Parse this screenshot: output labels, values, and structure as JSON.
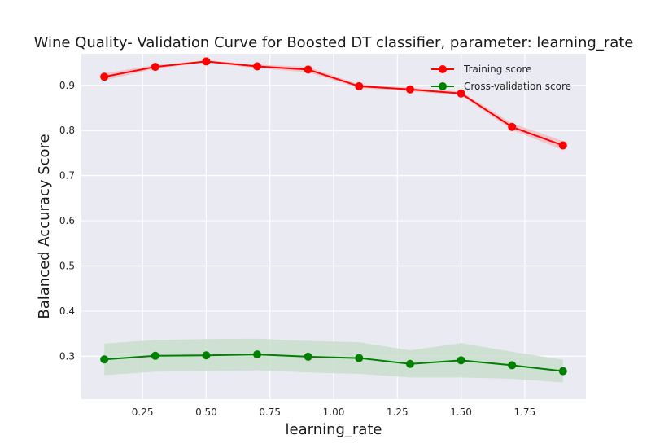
{
  "chart_data": {
    "type": "line",
    "title": "Wine Quality- Validation Curve for Boosted DT classifier, parameter: learning_rate",
    "xlabel": "learning_rate",
    "ylabel": "Balanced Accuracy Score",
    "x": [
      0.1,
      0.3,
      0.5,
      0.7,
      0.9,
      1.1,
      1.3,
      1.5,
      1.7,
      1.9
    ],
    "xlim": [
      0.01,
      1.99
    ],
    "ylim": [
      0.205,
      0.97
    ],
    "xticks": [
      0.25,
      0.5,
      0.75,
      1.0,
      1.25,
      1.5,
      1.75
    ],
    "xtick_labels": [
      "0.25",
      "0.50",
      "0.75",
      "1.00",
      "1.25",
      "1.50",
      "1.75"
    ],
    "yticks": [
      0.3,
      0.4,
      0.5,
      0.6,
      0.7,
      0.8,
      0.9
    ],
    "ytick_labels": [
      "0.3",
      "0.4",
      "0.5",
      "0.6",
      "0.7",
      "0.8",
      "0.9"
    ],
    "grid": true,
    "legend_position": "top-right",
    "series": [
      {
        "name": "Training score",
        "color": "#ff0000",
        "values": [
          0.919,
          0.941,
          0.953,
          0.942,
          0.935,
          0.898,
          0.891,
          0.882,
          0.808,
          0.767
        ],
        "band_lower": [
          0.911,
          0.937,
          0.951,
          0.938,
          0.929,
          0.894,
          0.887,
          0.878,
          0.801,
          0.757
        ],
        "band_upper": [
          0.927,
          0.945,
          0.955,
          0.946,
          0.941,
          0.902,
          0.895,
          0.886,
          0.816,
          0.777
        ],
        "band_color": "#f4b7bd"
      },
      {
        "name": "Cross-validation score",
        "color": "#008000",
        "values": [
          0.293,
          0.301,
          0.302,
          0.304,
          0.299,
          0.296,
          0.283,
          0.291,
          0.28,
          0.267
        ],
        "band_lower": [
          0.258,
          0.266,
          0.267,
          0.269,
          0.264,
          0.261,
          0.253,
          0.253,
          0.25,
          0.242
        ],
        "band_upper": [
          0.328,
          0.336,
          0.338,
          0.339,
          0.334,
          0.331,
          0.313,
          0.329,
          0.31,
          0.292
        ],
        "band_color": "#c3dcc6"
      }
    ]
  }
}
